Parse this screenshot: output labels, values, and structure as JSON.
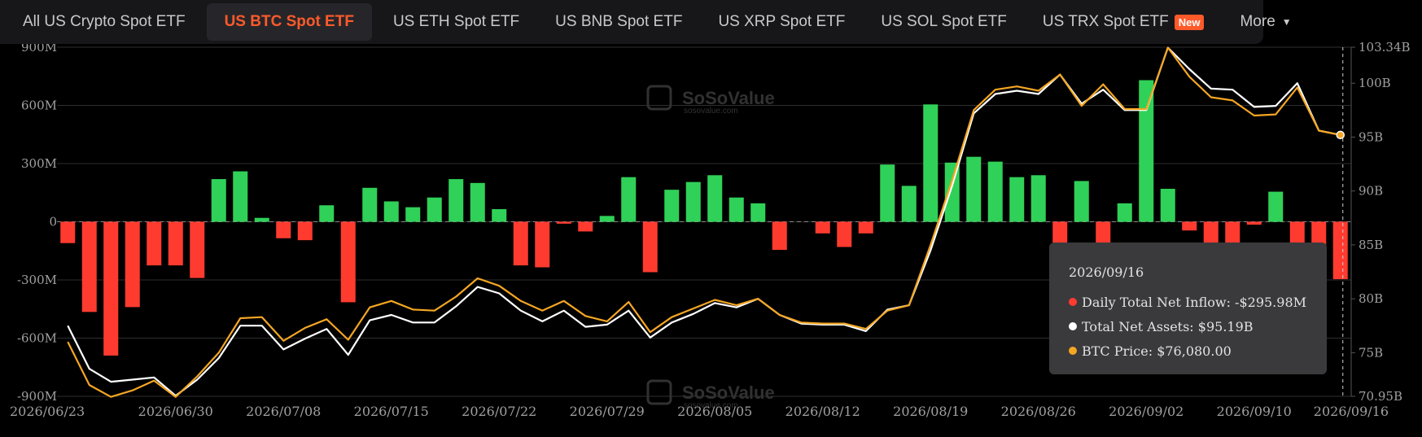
{
  "tabs": [
    {
      "label": "All US Crypto Spot ETF",
      "active": false
    },
    {
      "label": "US BTC Spot ETF",
      "active": true
    },
    {
      "label": "US ETH Spot ETF",
      "active": false
    },
    {
      "label": "US BNB Spot ETF",
      "active": false
    },
    {
      "label": "US XRP Spot ETF",
      "active": false
    },
    {
      "label": "US SOL Spot ETF",
      "active": false
    },
    {
      "label": "US TRX Spot ETF",
      "active": false,
      "badge": "New"
    },
    {
      "label": "More",
      "active": false
    }
  ],
  "watermark": {
    "name": "SoSoValue",
    "url": "sosovalue.com"
  },
  "tooltip": {
    "date": "2026/09/16",
    "rows": [
      {
        "label": "Daily Total Net Inflow: -$295.98M",
        "color": "#ff3b30"
      },
      {
        "label": "Total Net Assets: $95.19B",
        "color": "#ffffff"
      },
      {
        "label": "BTC Price: $76,080.00",
        "color": "#f5a623"
      }
    ]
  },
  "chart_data": {
    "type": "bar",
    "colors": {
      "positive": "#30d158",
      "negative": "#ff3b30",
      "assets": "#ffffff",
      "price": "#f5a623"
    },
    "x_tick_labels": [
      "2026/06/23",
      "2026/06/30",
      "2026/07/08",
      "2026/07/15",
      "2026/07/22",
      "2026/07/29",
      "2026/08/05",
      "2026/08/12",
      "2026/08/19",
      "2026/08/26",
      "2026/09/02",
      "2026/09/10",
      "2026/09/16"
    ],
    "x_tick_index": [
      0,
      5,
      10,
      15,
      20,
      25,
      30,
      35,
      40,
      45,
      50,
      55,
      59
    ],
    "y_left": {
      "ticks": [
        900,
        600,
        300,
        0,
        -300,
        -600,
        -900
      ],
      "tick_labels": [
        "900M",
        "600M",
        "300M",
        "0",
        "-300M",
        "-600M",
        "-900M"
      ],
      "min": -900,
      "max": 900,
      "unit": "M"
    },
    "y_right": {
      "ticks": [
        103.34,
        100,
        95,
        90,
        85,
        80,
        75,
        70.95
      ],
      "tick_labels": [
        "103.34B",
        "100B",
        "95B",
        "90B",
        "85B",
        "80B",
        "75B",
        "70.95B"
      ],
      "min": 70.95,
      "max": 103.34,
      "unit": "B"
    },
    "grid": true,
    "series": [
      {
        "name": "Daily Total Net Inflow",
        "type": "bar",
        "values": [
          -110,
          -465,
          -690,
          -440,
          -225,
          -225,
          -290,
          220,
          260,
          20,
          -85,
          -95,
          85,
          -415,
          175,
          105,
          75,
          125,
          220,
          200,
          65,
          -225,
          -235,
          -10,
          -50,
          30,
          230,
          -260,
          165,
          205,
          240,
          125,
          95,
          -145,
          0,
          -60,
          -130,
          -60,
          295,
          185,
          605,
          305,
          335,
          310,
          230,
          240,
          -110,
          210,
          -110,
          95,
          730,
          170,
          -45,
          -120,
          -120,
          -15,
          155,
          -140,
          -445,
          -296
        ]
      },
      {
        "name": "Total Net Assets",
        "type": "line",
        "values": [
          77.5,
          73.5,
          72.3,
          72.5,
          72.7,
          71.0,
          72.5,
          74.5,
          77.5,
          77.5,
          75.3,
          76.3,
          77.2,
          74.8,
          78.0,
          78.5,
          77.8,
          77.8,
          79.3,
          81.1,
          80.5,
          78.9,
          77.9,
          78.9,
          77.4,
          77.6,
          78.9,
          76.4,
          77.8,
          78.6,
          79.6,
          79.2,
          80.0,
          78.5,
          77.7,
          77.6,
          77.6,
          77.0,
          79.0,
          79.4,
          84.5,
          90.5,
          97.2,
          99.0,
          99.3,
          99.0,
          100.8,
          98.1,
          99.4,
          97.5,
          97.5,
          103.3,
          101.3,
          99.5,
          99.4,
          97.8,
          97.9,
          100.0,
          95.6,
          95.2
        ]
      },
      {
        "name": "BTC Price",
        "type": "line",
        "values": [
          76.0,
          72.0,
          70.9,
          71.5,
          72.4,
          70.9,
          72.8,
          75.0,
          78.2,
          78.3,
          76.1,
          77.3,
          78.1,
          76.2,
          79.2,
          79.8,
          79.0,
          78.9,
          80.2,
          81.9,
          81.2,
          79.8,
          78.9,
          79.8,
          78.4,
          77.9,
          79.7,
          76.9,
          78.3,
          79.1,
          79.9,
          79.4,
          80.0,
          78.5,
          77.8,
          77.7,
          77.7,
          77.2,
          78.9,
          79.4,
          85.0,
          91.0,
          97.5,
          99.4,
          99.7,
          99.3,
          100.8,
          97.9,
          99.9,
          97.6,
          97.6,
          103.3,
          100.6,
          98.7,
          98.4,
          97.0,
          97.1,
          99.6,
          95.6,
          95.2
        ]
      }
    ]
  }
}
